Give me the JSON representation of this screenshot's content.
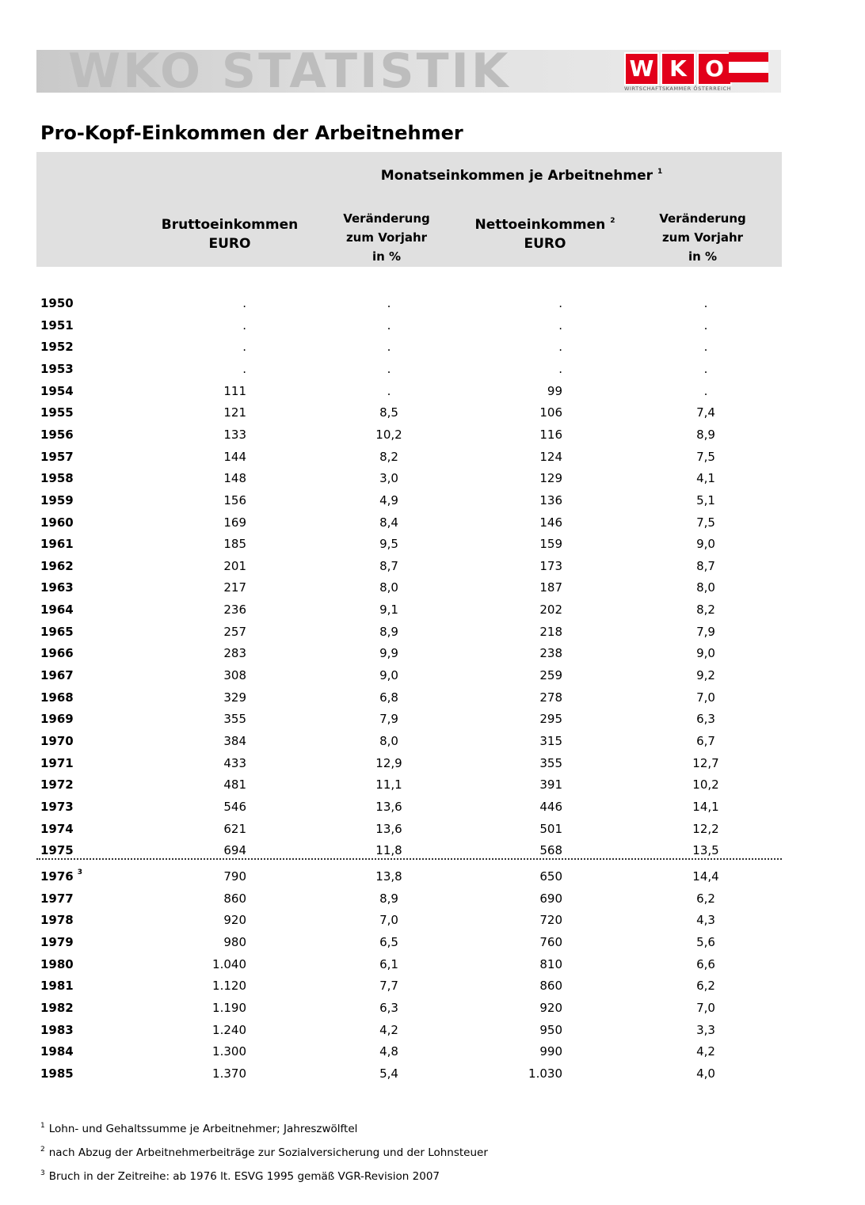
{
  "banner": {
    "title": "WKO STATISTIK",
    "logo_letters": [
      "W",
      "K",
      "O"
    ],
    "logo_subtitle": "WIRTSCHAFTSKAMMER ÖSTERREICH",
    "logo_color": "#e2001a"
  },
  "page_title": "Pro-Kopf-Einkommen der Arbeitnehmer",
  "header": {
    "group_title": "Monatseinkommen je Arbeitnehmer",
    "group_sup": "1",
    "col1": {
      "line1": "Bruttoeinkommen",
      "line2": "EURO"
    },
    "col2": {
      "line1": "Veränderung",
      "line2": "zum Vorjahr",
      "line3": "in %"
    },
    "col3": {
      "line1": "Nettoeinkommen",
      "sup": "2",
      "line2": "EURO"
    },
    "col4": {
      "line1": "Veränderung",
      "line2": "zum Vorjahr",
      "line3": "in %"
    }
  },
  "rows": [
    {
      "year": "1950",
      "sup": "",
      "brutto": ".",
      "brutto_change": ".",
      "netto": ".",
      "netto_change": "."
    },
    {
      "year": "1951",
      "sup": "",
      "brutto": ".",
      "brutto_change": ".",
      "netto": ".",
      "netto_change": "."
    },
    {
      "year": "1952",
      "sup": "",
      "brutto": ".",
      "brutto_change": ".",
      "netto": ".",
      "netto_change": "."
    },
    {
      "year": "1953",
      "sup": "",
      "brutto": ".",
      "brutto_change": ".",
      "netto": ".",
      "netto_change": "."
    },
    {
      "year": "1954",
      "sup": "",
      "brutto": "111",
      "brutto_change": ".",
      "netto": "99",
      "netto_change": "."
    },
    {
      "year": "1955",
      "sup": "",
      "brutto": "121",
      "brutto_change": "8,5",
      "netto": "106",
      "netto_change": "7,4"
    },
    {
      "year": "1956",
      "sup": "",
      "brutto": "133",
      "brutto_change": "10,2",
      "netto": "116",
      "netto_change": "8,9"
    },
    {
      "year": "1957",
      "sup": "",
      "brutto": "144",
      "brutto_change": "8,2",
      "netto": "124",
      "netto_change": "7,5"
    },
    {
      "year": "1958",
      "sup": "",
      "brutto": "148",
      "brutto_change": "3,0",
      "netto": "129",
      "netto_change": "4,1"
    },
    {
      "year": "1959",
      "sup": "",
      "brutto": "156",
      "brutto_change": "4,9",
      "netto": "136",
      "netto_change": "5,1"
    },
    {
      "year": "1960",
      "sup": "",
      "brutto": "169",
      "brutto_change": "8,4",
      "netto": "146",
      "netto_change": "7,5"
    },
    {
      "year": "1961",
      "sup": "",
      "brutto": "185",
      "brutto_change": "9,5",
      "netto": "159",
      "netto_change": "9,0"
    },
    {
      "year": "1962",
      "sup": "",
      "brutto": "201",
      "brutto_change": "8,7",
      "netto": "173",
      "netto_change": "8,7"
    },
    {
      "year": "1963",
      "sup": "",
      "brutto": "217",
      "brutto_change": "8,0",
      "netto": "187",
      "netto_change": "8,0"
    },
    {
      "year": "1964",
      "sup": "",
      "brutto": "236",
      "brutto_change": "9,1",
      "netto": "202",
      "netto_change": "8,2"
    },
    {
      "year": "1965",
      "sup": "",
      "brutto": "257",
      "brutto_change": "8,9",
      "netto": "218",
      "netto_change": "7,9"
    },
    {
      "year": "1966",
      "sup": "",
      "brutto": "283",
      "brutto_change": "9,9",
      "netto": "238",
      "netto_change": "9,0"
    },
    {
      "year": "1967",
      "sup": "",
      "brutto": "308",
      "brutto_change": "9,0",
      "netto": "259",
      "netto_change": "9,2"
    },
    {
      "year": "1968",
      "sup": "",
      "brutto": "329",
      "brutto_change": "6,8",
      "netto": "278",
      "netto_change": "7,0"
    },
    {
      "year": "1969",
      "sup": "",
      "brutto": "355",
      "brutto_change": "7,9",
      "netto": "295",
      "netto_change": "6,3"
    },
    {
      "year": "1970",
      "sup": "",
      "brutto": "384",
      "brutto_change": "8,0",
      "netto": "315",
      "netto_change": "6,7"
    },
    {
      "year": "1971",
      "sup": "",
      "brutto": "433",
      "brutto_change": "12,9",
      "netto": "355",
      "netto_change": "12,7"
    },
    {
      "year": "1972",
      "sup": "",
      "brutto": "481",
      "brutto_change": "11,1",
      "netto": "391",
      "netto_change": "10,2"
    },
    {
      "year": "1973",
      "sup": "",
      "brutto": "546",
      "brutto_change": "13,6",
      "netto": "446",
      "netto_change": "14,1"
    },
    {
      "year": "1974",
      "sup": "",
      "brutto": "621",
      "brutto_change": "13,6",
      "netto": "501",
      "netto_change": "12,2"
    },
    {
      "year": "1975",
      "sup": "",
      "brutto": "694",
      "brutto_change": "11,8",
      "netto": "568",
      "netto_change": "13,5"
    },
    {
      "year": "1976",
      "sup": "3",
      "brutto": "790",
      "brutto_change": "13,8",
      "netto": "650",
      "netto_change": "14,4"
    },
    {
      "year": "1977",
      "sup": "",
      "brutto": "860",
      "brutto_change": "8,9",
      "netto": "690",
      "netto_change": "6,2"
    },
    {
      "year": "1978",
      "sup": "",
      "brutto": "920",
      "brutto_change": "7,0",
      "netto": "720",
      "netto_change": "4,3"
    },
    {
      "year": "1979",
      "sup": "",
      "brutto": "980",
      "brutto_change": "6,5",
      "netto": "760",
      "netto_change": "5,6"
    },
    {
      "year": "1980",
      "sup": "",
      "brutto": "1.040",
      "brutto_change": "6,1",
      "netto": "810",
      "netto_change": "6,6"
    },
    {
      "year": "1981",
      "sup": "",
      "brutto": "1.120",
      "brutto_change": "7,7",
      "netto": "860",
      "netto_change": "6,2"
    },
    {
      "year": "1982",
      "sup": "",
      "brutto": "1.190",
      "brutto_change": "6,3",
      "netto": "920",
      "netto_change": "7,0"
    },
    {
      "year": "1983",
      "sup": "",
      "brutto": "1.240",
      "brutto_change": "4,2",
      "netto": "950",
      "netto_change": "3,3"
    },
    {
      "year": "1984",
      "sup": "",
      "brutto": "1.300",
      "brutto_change": "4,8",
      "netto": "990",
      "netto_change": "4,2"
    },
    {
      "year": "1985",
      "sup": "",
      "brutto": "1.370",
      "brutto_change": "5,4",
      "netto": "1.030",
      "netto_change": "4,0"
    }
  ],
  "footnotes": [
    {
      "mark": "1",
      "text": "Lohn- und Gehaltssumme je Arbeitnehmer; Jahreszwölftel"
    },
    {
      "mark": "2",
      "text": "nach Abzug der Arbeitnehmerbeiträge zur Sozialversicherung und der Lohnsteuer"
    },
    {
      "mark": "3",
      "text": "Bruch in der Zeitreihe: ab 1976 lt. ESVG 1995 gemäß VGR-Revision 2007"
    }
  ]
}
